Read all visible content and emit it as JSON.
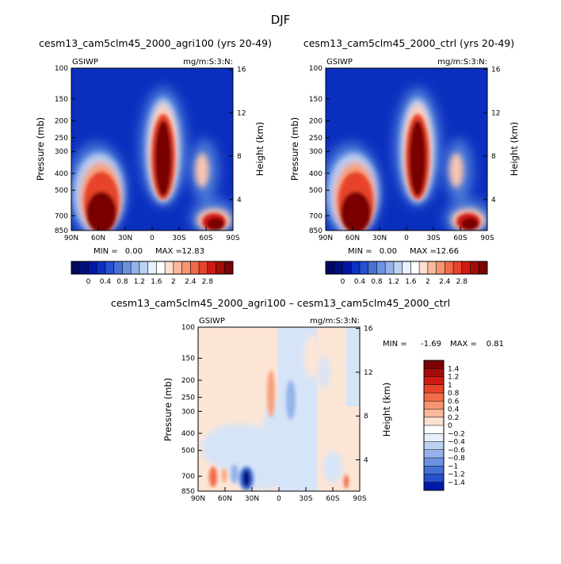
{
  "figure": {
    "main_title": "DJF",
    "units_label": "mg/m:S:3:N:",
    "variable_label": "GSIWP"
  },
  "palette": {
    "positive_levels": [
      "#ffffff",
      "#fde0d0",
      "#fbb89a",
      "#f79570",
      "#f26b48",
      "#e8432b",
      "#d01b12",
      "#a30d0a",
      "#7a0403"
    ],
    "negative_levels": [
      "#e8f0fb",
      "#bcd2f3",
      "#95b3ea",
      "#6d93e0",
      "#4571d6",
      "#2651cf",
      "#0c32c2",
      "#0018a8",
      "#000f80",
      "#000860"
    ]
  },
  "chart_data": [
    {
      "type": "heatmap",
      "id": "agri100",
      "title": "cesm13_cam5clm45_2000_agri100 (yrs 20-49)",
      "ylabel": "Pressure (mb)",
      "y2label": "Height (km)",
      "x_ticks": [
        "90N",
        "60N",
        "30N",
        "0",
        "30S",
        "60S",
        "90S"
      ],
      "y_ticks": [
        100,
        150,
        200,
        250,
        300,
        400,
        500,
        700,
        850
      ],
      "y2_ticks": [
        16,
        12,
        8,
        4
      ],
      "ylim": [
        850,
        100
      ],
      "min_label": "MIN =",
      "min_value": "0.00",
      "max_label": "MAX =",
      "max_value": "12.83",
      "colorbar_ticks": [
        "0",
        "0.4",
        "0.8",
        "1.2",
        "1.6",
        "2",
        "2.4",
        "2.8"
      ]
    },
    {
      "type": "heatmap",
      "id": "ctrl",
      "title": "cesm13_cam5clm45_2000_ctrl (yrs 20-49)",
      "ylabel": "Pressure (mb)",
      "y2label": "Height (km)",
      "x_ticks": [
        "90N",
        "60N",
        "30N",
        "0",
        "30S",
        "60S",
        "90S"
      ],
      "y_ticks": [
        100,
        150,
        200,
        250,
        300,
        400,
        500,
        700,
        850
      ],
      "y2_ticks": [
        16,
        12,
        8,
        4
      ],
      "ylim": [
        850,
        100
      ],
      "min_label": "MIN =",
      "min_value": "0.00",
      "max_label": "MAX =",
      "max_value": "12.66",
      "colorbar_ticks": [
        "0",
        "0.4",
        "0.8",
        "1.2",
        "1.6",
        "2",
        "2.4",
        "2.8"
      ]
    },
    {
      "type": "heatmap",
      "id": "diff",
      "title": "cesm13_cam5clm45_2000_agri100 – cesm13_cam5clm45_2000_ctrl",
      "ylabel": "Pressure (mb)",
      "y2label": "Height (km)",
      "x_ticks": [
        "90N",
        "60N",
        "30N",
        "0",
        "30S",
        "60S",
        "90S"
      ],
      "y_ticks": [
        100,
        150,
        200,
        250,
        300,
        400,
        500,
        700,
        850
      ],
      "y2_ticks": [
        16,
        12,
        8,
        4
      ],
      "ylim": [
        850,
        100
      ],
      "min_label": "MIN =",
      "min_value": "-1.69",
      "max_label": "MAX =",
      "max_value": "0.81",
      "colorbar_ticks": [
        "1.4",
        "1.2",
        "1",
        "0.8",
        "0.6",
        "0.4",
        "0.2",
        "0",
        "−0.2",
        "−0.4",
        "−0.6",
        "−0.8",
        "−1",
        "−1.2",
        "−1.4"
      ]
    }
  ]
}
